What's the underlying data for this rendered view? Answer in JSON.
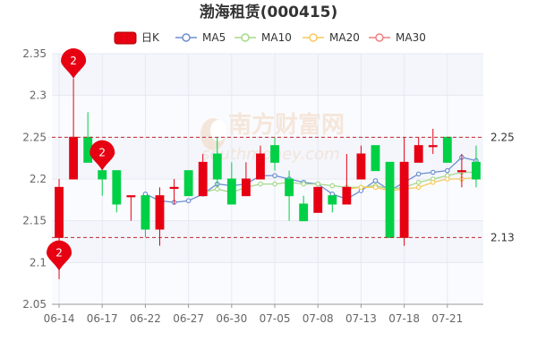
{
  "title": "渤海租赁(000415)",
  "legend": {
    "k_label": "日K",
    "ma5": "MA5",
    "ma10": "MA10",
    "ma20": "MA20",
    "ma30": "MA30"
  },
  "colors": {
    "up": "#e60012",
    "down": "#00d046",
    "ma5": "#6d8ed0",
    "ma10": "#a6d88c",
    "ma20": "#f7c95c",
    "ma30": "#f08080",
    "ref_line": "#c0282c",
    "pin": "#e60012"
  },
  "watermark": {
    "brand": "南方财富网",
    "url": "southmoney.com"
  },
  "chart_data": {
    "type": "candlestick",
    "ylim": [
      2.05,
      2.35
    ],
    "yticks": [
      "2.05",
      "2.1",
      "2.15",
      "2.2",
      "2.25",
      "2.3",
      "2.35"
    ],
    "xticks": [
      "06-14",
      "06-17",
      "06-22",
      "06-27",
      "06-30",
      "07-05",
      "07-08",
      "07-13",
      "07-18",
      "07-21"
    ],
    "xtick_index": [
      0,
      3,
      6,
      9,
      12,
      15,
      18,
      21,
      24,
      27
    ],
    "reference_lines": [
      {
        "value": 2.25,
        "label": "2.25"
      },
      {
        "value": 2.13,
        "label": "2.13"
      }
    ],
    "pins": [
      {
        "index": 1,
        "value": 2.32,
        "label": "2"
      },
      {
        "index": 3,
        "value": 2.21,
        "label": "2"
      },
      {
        "index": 0,
        "value": 2.09,
        "label": "2"
      }
    ],
    "candles": [
      {
        "o": 2.13,
        "c": 2.19,
        "h": 2.2,
        "l": 2.08
      },
      {
        "o": 2.2,
        "c": 2.25,
        "h": 2.32,
        "l": 2.2
      },
      {
        "o": 2.25,
        "c": 2.22,
        "h": 2.28,
        "l": 2.22
      },
      {
        "o": 2.21,
        "c": 2.2,
        "h": 2.22,
        "l": 2.18
      },
      {
        "o": 2.21,
        "c": 2.17,
        "h": 2.21,
        "l": 2.16
      },
      {
        "o": 2.18,
        "c": 2.18,
        "h": 2.18,
        "l": 2.15
      },
      {
        "o": 2.18,
        "c": 2.14,
        "h": 2.18,
        "l": 2.13
      },
      {
        "o": 2.14,
        "c": 2.18,
        "h": 2.19,
        "l": 2.12
      },
      {
        "o": 2.19,
        "c": 2.19,
        "h": 2.2,
        "l": 2.17
      },
      {
        "o": 2.21,
        "c": 2.18,
        "h": 2.21,
        "l": 2.18
      },
      {
        "o": 2.18,
        "c": 2.22,
        "h": 2.23,
        "l": 2.18
      },
      {
        "o": 2.23,
        "c": 2.2,
        "h": 2.25,
        "l": 2.19
      },
      {
        "o": 2.2,
        "c": 2.17,
        "h": 2.22,
        "l": 2.17
      },
      {
        "o": 2.18,
        "c": 2.2,
        "h": 2.22,
        "l": 2.18
      },
      {
        "o": 2.2,
        "c": 2.23,
        "h": 2.24,
        "l": 2.2
      },
      {
        "o": 2.24,
        "c": 2.22,
        "h": 2.25,
        "l": 2.21
      },
      {
        "o": 2.2,
        "c": 2.18,
        "h": 2.21,
        "l": 2.15
      },
      {
        "o": 2.17,
        "c": 2.15,
        "h": 2.18,
        "l": 2.15
      },
      {
        "o": 2.16,
        "c": 2.19,
        "h": 2.19,
        "l": 2.16
      },
      {
        "o": 2.18,
        "c": 2.17,
        "h": 2.18,
        "l": 2.16
      },
      {
        "o": 2.17,
        "c": 2.19,
        "h": 2.23,
        "l": 2.17
      },
      {
        "o": 2.2,
        "c": 2.23,
        "h": 2.24,
        "l": 2.2
      },
      {
        "o": 2.24,
        "c": 2.21,
        "h": 2.24,
        "l": 2.21
      },
      {
        "o": 2.22,
        "c": 2.13,
        "h": 2.22,
        "l": 2.13
      },
      {
        "o": 2.13,
        "c": 2.22,
        "h": 2.25,
        "l": 2.12
      },
      {
        "o": 2.22,
        "c": 2.24,
        "h": 2.25,
        "l": 2.22
      },
      {
        "o": 2.24,
        "c": 2.24,
        "h": 2.26,
        "l": 2.23
      },
      {
        "o": 2.25,
        "c": 2.22,
        "h": 2.25,
        "l": 2.22
      },
      {
        "o": 2.21,
        "c": 2.21,
        "h": 2.23,
        "l": 2.19
      },
      {
        "o": 2.22,
        "c": 2.2,
        "h": 2.24,
        "l": 2.19
      }
    ],
    "ma5": [
      null,
      null,
      null,
      null,
      2.204,
      null,
      2.182,
      2.174,
      2.172,
      2.174,
      2.182,
      2.194,
      2.192,
      2.194,
      2.204,
      2.204,
      2.2,
      2.196,
      2.194,
      2.182,
      2.176,
      2.186,
      2.198,
      2.186,
      2.196,
      2.206,
      2.208,
      2.21,
      2.226,
      2.222
    ],
    "ma10": [
      null,
      null,
      null,
      null,
      null,
      null,
      null,
      null,
      null,
      null,
      2.184,
      2.188,
      2.184,
      2.19,
      2.194,
      2.194,
      2.196,
      2.194,
      2.194,
      2.192,
      2.19,
      2.19,
      2.192,
      2.188,
      2.19,
      2.196,
      2.2,
      2.204,
      2.208,
      2.208
    ],
    "ma20": [
      null,
      null,
      null,
      null,
      null,
      null,
      null,
      null,
      null,
      null,
      2.192,
      null,
      null,
      null,
      null,
      null,
      null,
      null,
      null,
      null,
      2.188,
      2.19,
      2.19,
      2.186,
      2.188,
      2.19,
      2.196,
      2.2,
      2.2,
      2.202
    ],
    "ma30": []
  }
}
